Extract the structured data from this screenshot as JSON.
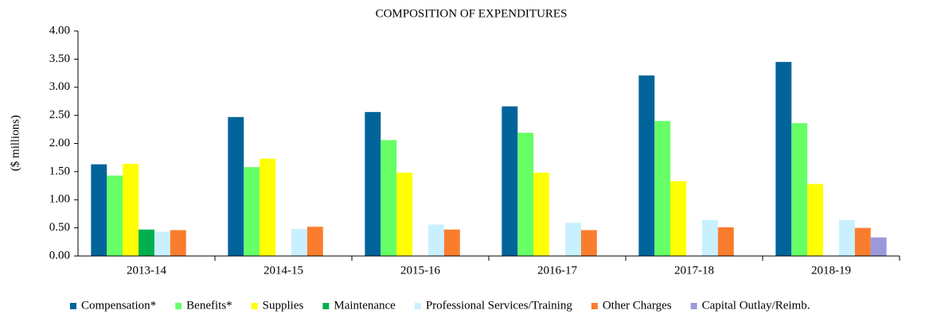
{
  "chart_data": {
    "type": "bar",
    "title": "COMPOSITION OF EXPENDITURES",
    "y_label": "($ millions)",
    "categories": [
      "2013-14",
      "2014-15",
      "2015-16",
      "2016-17",
      "2017-18",
      "2018-19"
    ],
    "series": [
      {
        "name": "Compensation*",
        "color": "#00649b",
        "values": [
          1.63,
          2.47,
          2.56,
          2.66,
          3.21,
          3.45
        ]
      },
      {
        "name": "Benefits*",
        "color": "#66ff66",
        "values": [
          1.43,
          1.58,
          2.06,
          2.19,
          2.4,
          2.36
        ]
      },
      {
        "name": "Supplies",
        "color": "#ffff00",
        "values": [
          1.64,
          1.73,
          1.48,
          1.48,
          1.33,
          1.28
        ]
      },
      {
        "name": "Maintenance",
        "color": "#00b050",
        "values": [
          0.47,
          null,
          null,
          null,
          null,
          null
        ]
      },
      {
        "name": "Professional Services/Training",
        "color": "#c9f0ff",
        "values": [
          0.43,
          0.48,
          0.56,
          0.59,
          0.64,
          0.64
        ]
      },
      {
        "name": "Other Charges",
        "color": "#fa7d2d",
        "values": [
          0.46,
          0.52,
          0.47,
          0.46,
          0.51,
          0.5
        ]
      },
      {
        "name": "Capital Outlay/Reimb.",
        "color": "#9999dd",
        "values": [
          null,
          null,
          null,
          null,
          null,
          0.33
        ]
      }
    ],
    "ylim": [
      0,
      4
    ],
    "yticks": [
      {
        "value": 0,
        "label": "0.00"
      },
      {
        "value": 0.5,
        "label": "0.50"
      },
      {
        "value": 1,
        "label": "1.00"
      },
      {
        "value": 1.5,
        "label": "1.50"
      },
      {
        "value": 2,
        "label": "2.00"
      },
      {
        "value": 2.5,
        "label": "2.50"
      },
      {
        "value": 3,
        "label": "3.00"
      },
      {
        "value": 3.5,
        "label": "3.50"
      },
      {
        "value": 4,
        "label": "4.00"
      }
    ],
    "legend": "bottom"
  }
}
